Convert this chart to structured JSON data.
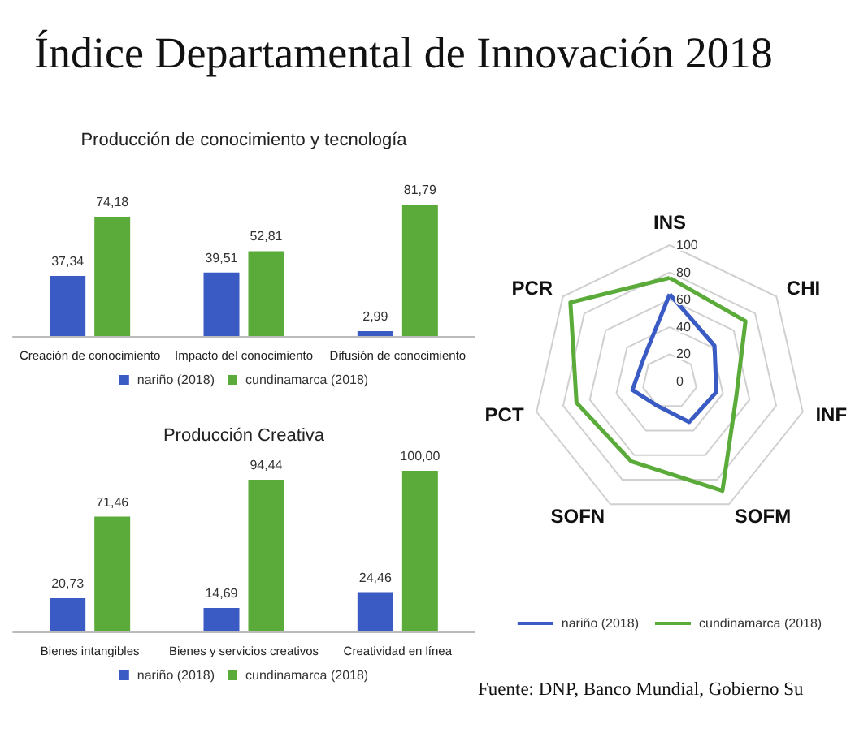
{
  "chart_data": [
    {
      "type": "other",
      "title": "Índice Departamental de Innovación 2018"
    },
    {
      "type": "bar",
      "title": "Producción de conocimiento y tecnología",
      "categories": [
        "Creación de conocimiento",
        "Impacto del conocimiento",
        "Difusión de conocimiento"
      ],
      "series": [
        {
          "name": "nariño (2018)",
          "color": "#3a5bc3",
          "values": [
            37.34,
            39.51,
            2.99
          ],
          "value_labels": [
            "37,34",
            "39,51",
            "2,99"
          ]
        },
        {
          "name": "cundinamarca (2018)",
          "color": "#5aab3a",
          "values": [
            74.18,
            52.81,
            81.79
          ],
          "value_labels": [
            "74,18",
            "52,81",
            "81,79"
          ]
        }
      ],
      "legend": "bottom",
      "grid": false
    },
    {
      "type": "bar",
      "title": "Producción Creativa",
      "categories": [
        "Bienes intangibles",
        "Bienes y servicios creativos",
        "Creatividad en línea"
      ],
      "series": [
        {
          "name": "nariño (2018)",
          "color": "#3a5bc3",
          "values": [
            20.73,
            14.69,
            24.46
          ],
          "value_labels": [
            "20,73",
            "14,69",
            "24,46"
          ]
        },
        {
          "name": "cundinamarca (2018)",
          "color": "#5aab3a",
          "values": [
            71.46,
            94.44,
            100.0
          ],
          "value_labels": [
            "71,46",
            "94,44",
            "100,00"
          ]
        }
      ],
      "legend": "bottom",
      "grid": false
    },
    {
      "type": "radar",
      "categories": [
        "INS",
        "CHI",
        "INF",
        "SOFM",
        "SOFN",
        "PCT",
        "PCR"
      ],
      "ylim": [
        0,
        100
      ],
      "yticks": [
        0,
        20,
        40,
        60,
        80,
        100
      ],
      "series": [
        {
          "name": "nariño (2018)",
          "color": "#3a5bc3",
          "values": [
            64,
            42,
            35,
            33,
            20,
            28,
            25
          ]
        },
        {
          "name": "cundinamarca (2018)",
          "color": "#5aab3a",
          "values": [
            76,
            71,
            50,
            89,
            65,
            70,
            93
          ]
        }
      ],
      "legend": "bottom",
      "marker": "none",
      "annotations": [
        "Fuente: DNP, Banco Mundial, Gobierno Su"
      ]
    }
  ]
}
